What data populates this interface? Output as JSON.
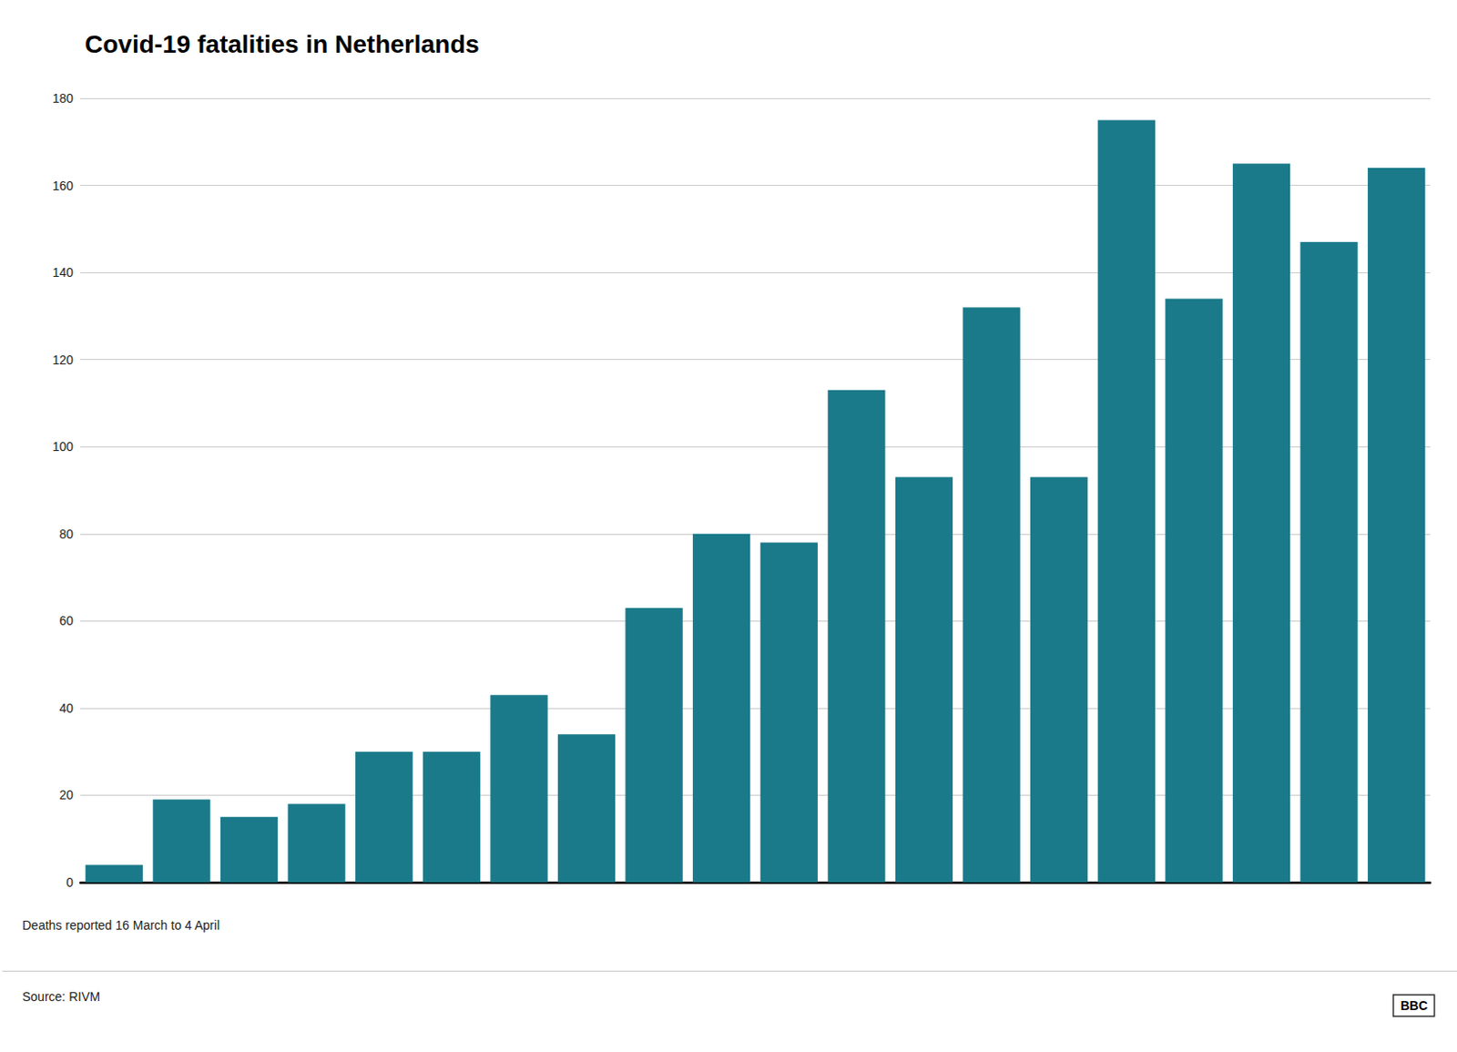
{
  "chart_data": {
    "type": "bar",
    "title": "Covid-19 fatalities in Netherlands",
    "subtitle": "Deaths reported 16 March to 4 April",
    "source": "Source: RIVM",
    "annotations": [
      "BBC"
    ],
    "categories": [
      null,
      null,
      null,
      null,
      null,
      null,
      null,
      null,
      null,
      null,
      null,
      null,
      null,
      null,
      null,
      null,
      null,
      null,
      null,
      null
    ],
    "values": [
      4,
      19,
      15,
      18,
      30,
      30,
      43,
      34,
      63,
      80,
      78,
      113,
      93,
      132,
      93,
      175,
      134,
      165,
      147,
      164
    ],
    "color": "#1a7a8a",
    "ylim": [
      0,
      180
    ],
    "yticks": [
      0,
      20,
      40,
      60,
      80,
      100,
      120,
      140,
      160,
      180
    ],
    "grid": true,
    "tick_labels": "y"
  }
}
